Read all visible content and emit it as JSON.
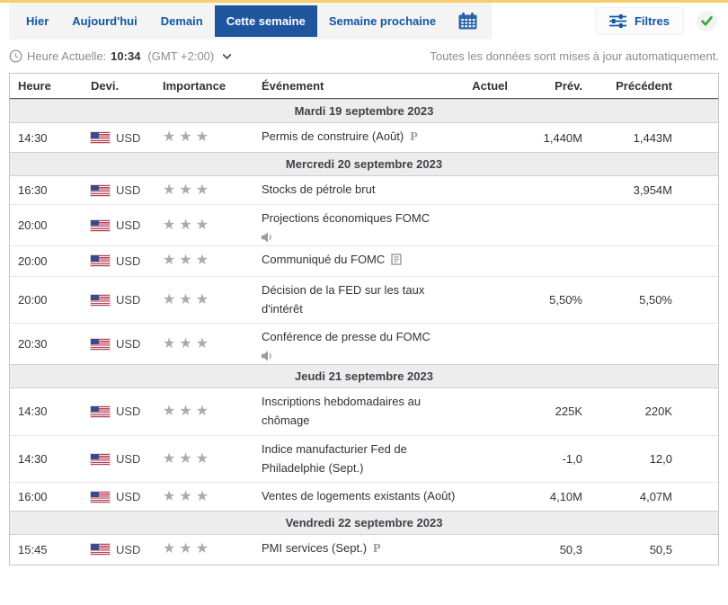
{
  "topbar": {
    "tabs": [
      {
        "label": "Hier",
        "active": false
      },
      {
        "label": "Aujourd'hui",
        "active": false
      },
      {
        "label": "Demain",
        "active": false
      },
      {
        "label": "Cette semaine",
        "active": true
      },
      {
        "label": "Semaine prochaine",
        "active": false
      }
    ],
    "filters_label": "Filtres"
  },
  "statusbar": {
    "current_time_label": "Heure Actuelle:",
    "current_time": "10:34",
    "timezone": "(GMT +2:00)",
    "auto_update_note": "Toutes les données sont mises à jour automatiquement."
  },
  "table": {
    "headers": [
      "Heure",
      "Devi.",
      "Importance",
      "Événement",
      "Actuel",
      "Prév.",
      "Précédent"
    ],
    "groups": [
      {
        "date": "Mardi 19 septembre 2023",
        "rows": [
          {
            "time": "14:30",
            "currency": "USD",
            "flag": "us-flag-icon",
            "importance": 3,
            "event": "Permis de construire (Août)",
            "event_icon": "preliminary-icon",
            "icon_position": "inline",
            "actual": "",
            "forecast": "1,440M",
            "previous": "1,443M"
          }
        ]
      },
      {
        "date": "Mercredi 20 septembre 2023",
        "rows": [
          {
            "time": "16:30",
            "currency": "USD",
            "flag": "us-flag-icon",
            "importance": 3,
            "event": "Stocks de pétrole brut",
            "event_icon": null,
            "icon_position": null,
            "actual": "",
            "forecast": "",
            "previous": "3,954M"
          },
          {
            "time": "20:00",
            "currency": "USD",
            "flag": "us-flag-icon",
            "importance": 3,
            "event": "Projections économiques FOMC",
            "event_icon": "speech-icon",
            "icon_position": "below",
            "actual": "",
            "forecast": "",
            "previous": ""
          },
          {
            "time": "20:00",
            "currency": "USD",
            "flag": "us-flag-icon",
            "importance": 3,
            "event": "Communiqué du FOMC",
            "event_icon": "report-icon",
            "icon_position": "inline",
            "actual": "",
            "forecast": "",
            "previous": ""
          },
          {
            "time": "20:00",
            "currency": "USD",
            "flag": "us-flag-icon",
            "importance": 3,
            "event": "Décision de la FED sur les taux d'intérêt",
            "event_icon": null,
            "icon_position": null,
            "actual": "",
            "forecast": "5,50%",
            "previous": "5,50%"
          },
          {
            "time": "20:30",
            "currency": "USD",
            "flag": "us-flag-icon",
            "importance": 3,
            "event": "Conférence de presse du FOMC",
            "event_icon": "speech-icon",
            "icon_position": "below",
            "actual": "",
            "forecast": "",
            "previous": ""
          }
        ]
      },
      {
        "date": "Jeudi 21 septembre 2023",
        "rows": [
          {
            "time": "14:30",
            "currency": "USD",
            "flag": "us-flag-icon",
            "importance": 3,
            "event": "Inscriptions hebdomadaires au chômage",
            "event_icon": null,
            "icon_position": null,
            "actual": "",
            "forecast": "225K",
            "previous": "220K"
          },
          {
            "time": "14:30",
            "currency": "USD",
            "flag": "us-flag-icon",
            "importance": 3,
            "event": "Indice manufacturier Fed de Philadelphie (Sept.)",
            "event_icon": null,
            "icon_position": null,
            "actual": "",
            "forecast": "-1,0",
            "previous": "12,0"
          },
          {
            "time": "16:00",
            "currency": "USD",
            "flag": "us-flag-icon",
            "importance": 3,
            "event": "Ventes de logements existants (Août)",
            "event_icon": null,
            "icon_position": null,
            "actual": "",
            "forecast": "4,10M",
            "previous": "4,07M"
          }
        ]
      },
      {
        "date": "Vendredi 22 septembre 2023",
        "rows": [
          {
            "time": "15:45",
            "currency": "USD",
            "flag": "us-flag-icon",
            "importance": 3,
            "event": "PMI services (Sept.)",
            "event_icon": "preliminary-icon",
            "icon_position": "inline",
            "actual": "",
            "forecast": "50,3",
            "previous": "50,5"
          }
        ]
      }
    ]
  },
  "colors": {
    "top_accent": "#F6CE6B",
    "active_tab_blue": "#1D569E",
    "link_blue": "#1057A0",
    "star_gray": "#ABABAB",
    "check_green": "#35A52F"
  }
}
